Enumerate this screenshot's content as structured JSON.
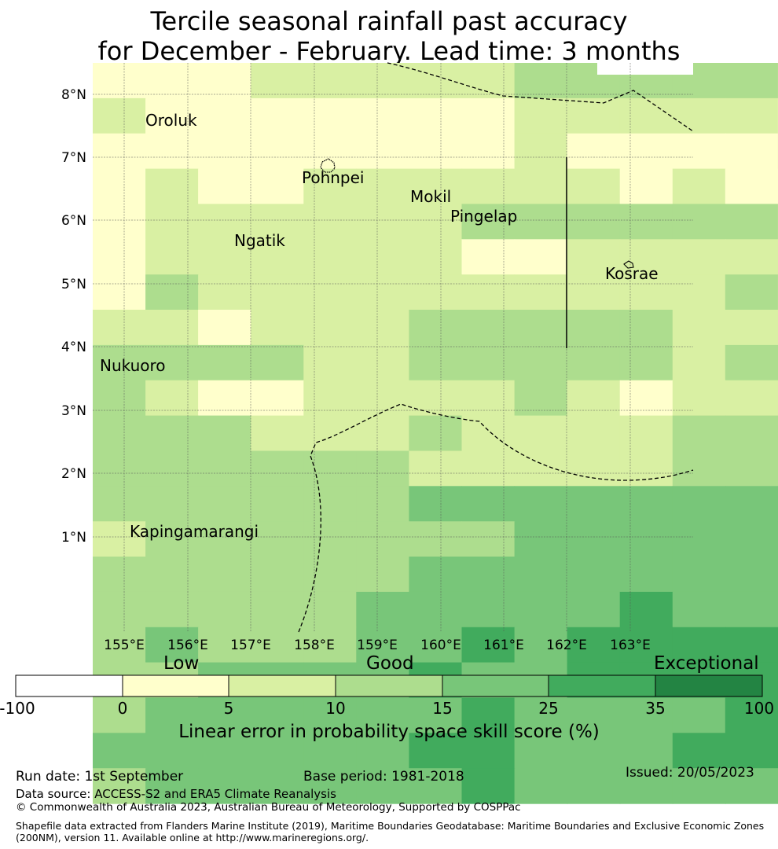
{
  "title": {
    "line1": "Tercile seasonal rainfall past accuracy",
    "line2": "for December - February. Lead time: 3 months"
  },
  "map": {
    "lat_labels": [
      "8°N",
      "7°N",
      "6°N",
      "5°N",
      "4°N",
      "3°N",
      "2°N",
      "1°N"
    ],
    "lon_labels": [
      "155°E",
      "156°E",
      "157°E",
      "158°E",
      "159°E",
      "160°E",
      "161°E",
      "162°E",
      "163°E"
    ],
    "places": [
      "Oroluk",
      "Pohnpei",
      "Mokil",
      "Pingelap",
      "Ngatik",
      "Kosrae",
      "Nukuoro",
      "Kapingamarangi"
    ],
    "colors": [
      "#ffffff",
      "#ffffcc",
      "#d9f0a3",
      "#addd8e",
      "#78c679",
      "#41ab5d",
      "#238443"
    ],
    "grid": [
      "11122222333332",
      "21111111222221",
      "11111111211112",
      "12112222221211",
      "12222223333332",
      "12222221122222",
      "13222222222232",
      "22122233333222",
      "33332233333233",
      "32112222321222",
      "33322232222333",
      "33333322222333",
      "33333344444444",
      "23333333444444",
      "33333344444444",
      "33333444445444",
      "34333445455555",
      "33444454455555",
      "34444445444455",
      "44444455444555",
      "34444445444444"
    ]
  },
  "colorbar": {
    "categories": [
      "Low",
      "Good",
      "Exceptional"
    ],
    "ticks": [
      "-100",
      "0",
      "5",
      "10",
      "15",
      "25",
      "35",
      "100"
    ],
    "label": "Linear error in probability space skill score (%)"
  },
  "footer": {
    "run_date": "Run date: 1st September",
    "base_period": "Base period: 1981-2018",
    "issued": "Issued: 20/05/2023",
    "data_source": "Data source: ACCESS-S2 and ERA5 Climate Reanalysis",
    "copyright": "© Commonwealth of Australia 2023, Australian Bureau of Meteorology, Supported by COSPPac",
    "shapefile": "Shapefile data extracted from Flanders Marine Institute (2019), Maritime Boundaries Geodatabase: Maritime Boundaries and Exclusive Economic Zones (200NM), version 11. Available online at http://www.marineregions.org/."
  }
}
